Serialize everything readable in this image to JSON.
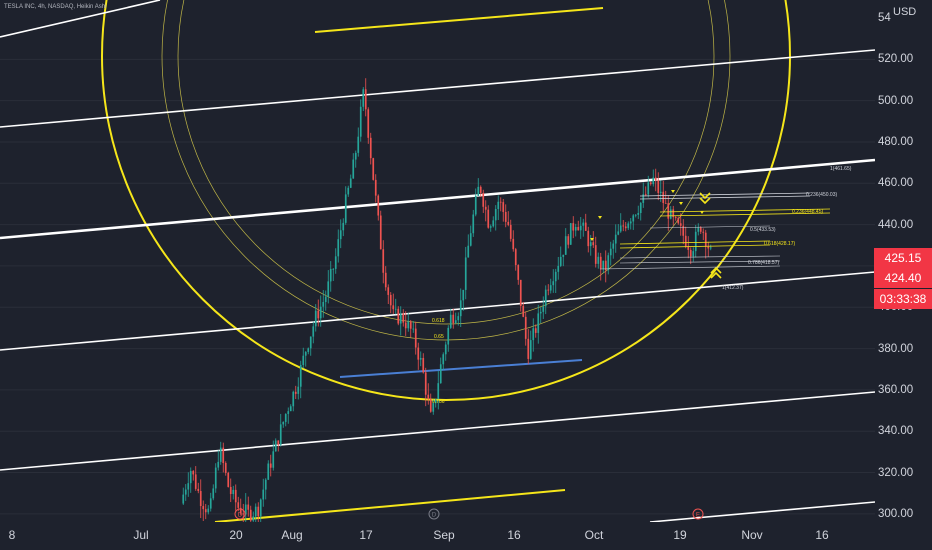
{
  "header": {
    "symbol_text": "TESLA INC, 4h, NASDAQ, Heikin Ashi"
  },
  "axis": {
    "currency": "USD",
    "top_partial": "54",
    "y_ticks": [
      "520.00",
      "500.00",
      "480.00",
      "460.00",
      "440.00",
      "420.00",
      "400.00",
      "380.00",
      "360.00",
      "340.00",
      "320.00",
      "300.00"
    ],
    "x_ticks": [
      "8",
      "Jul",
      "20",
      "Aug",
      "17",
      "Sep",
      "16",
      "Oct",
      "19",
      "Nov",
      "16"
    ]
  },
  "price_badges": {
    "current_price": "425.15",
    "secondary_price": "424.40",
    "countdown": "03:33:38"
  },
  "colors": {
    "background": "#1e222d",
    "bull": "#26a69a",
    "bear": "#ef5350",
    "trendline": "#ffffff",
    "yellow": "#f5e61a",
    "blue_line": "#4a7fd4",
    "badge_red": "#f23645"
  },
  "chart_data": {
    "type": "candlestick",
    "symbol": "TSLA",
    "ylim": [
      296,
      548
    ],
    "y_ticks": [
      300,
      320,
      340,
      360,
      380,
      400,
      420,
      440,
      460,
      480,
      500,
      520
    ],
    "x_tick_labels": [
      "8",
      "Jul",
      "20",
      "Aug",
      "17",
      "Sep",
      "16",
      "Oct",
      "19",
      "Nov",
      "16"
    ],
    "price_path": [
      {
        "t": "Jul 10",
        "p": 305
      },
      {
        "t": "Jul 14",
        "p": 322
      },
      {
        "t": "Jul 17",
        "p": 308
      },
      {
        "t": "Jul 20",
        "p": 300
      },
      {
        "t": "Jul 24",
        "p": 332
      },
      {
        "t": "Jul 28",
        "p": 312
      },
      {
        "t": "Aug 1",
        "p": 303
      },
      {
        "t": "Aug 7",
        "p": 300
      },
      {
        "t": "Aug 12",
        "p": 302
      },
      {
        "t": "Aug 15",
        "p": 320
      },
      {
        "t": "Aug 18",
        "p": 335
      },
      {
        "t": "Aug 21",
        "p": 350
      },
      {
        "t": "Aug 24",
        "p": 362
      },
      {
        "t": "Aug 27",
        "p": 380
      },
      {
        "t": "Aug 29",
        "p": 395
      },
      {
        "t": "Sep 2",
        "p": 405
      },
      {
        "t": "Sep 5",
        "p": 422
      },
      {
        "t": "Sep 8",
        "p": 448
      },
      {
        "t": "Sep 10",
        "p": 470
      },
      {
        "t": "Sep 11",
        "p": 505
      },
      {
        "t": "Sep 13",
        "p": 462
      },
      {
        "t": "Sep 15",
        "p": 420
      },
      {
        "t": "Sep 17",
        "p": 396
      },
      {
        "t": "Sep 19",
        "p": 395
      },
      {
        "t": "Sep 21",
        "p": 388
      },
      {
        "t": "Sep 23",
        "p": 372
      },
      {
        "t": "Sep 24",
        "p": 345
      },
      {
        "t": "Sep 26",
        "p": 372
      },
      {
        "t": "Sep 28",
        "p": 395
      },
      {
        "t": "Sep 30",
        "p": 400
      },
      {
        "t": "Oct 2",
        "p": 435
      },
      {
        "t": "Oct 4",
        "p": 460
      },
      {
        "t": "Oct 6",
        "p": 440
      },
      {
        "t": "Oct 8",
        "p": 452
      },
      {
        "t": "Oct 10",
        "p": 440
      },
      {
        "t": "Oct 12",
        "p": 412
      },
      {
        "t": "Oct 14",
        "p": 378
      },
      {
        "t": "Oct 16",
        "p": 392
      },
      {
        "t": "Oct 18",
        "p": 410
      },
      {
        "t": "Oct 20",
        "p": 420
      },
      {
        "t": "Oct 22",
        "p": 432
      },
      {
        "t": "Oct 24",
        "p": 442
      },
      {
        "t": "Oct 26",
        "p": 436
      },
      {
        "t": "Oct 28",
        "p": 424
      },
      {
        "t": "Oct 30",
        "p": 418
      },
      {
        "t": "Nov 1",
        "p": 432
      },
      {
        "t": "Nov 3",
        "p": 440
      },
      {
        "t": "Nov 5",
        "p": 446
      },
      {
        "t": "Nov 7",
        "p": 452
      },
      {
        "t": "Nov 9",
        "p": 462
      },
      {
        "t": "Nov 11",
        "p": 452
      },
      {
        "t": "Nov 13",
        "p": 442
      },
      {
        "t": "Nov 15",
        "p": 436
      },
      {
        "t": "Nov 17",
        "p": 428
      },
      {
        "t": "Nov 19",
        "p": 440
      },
      {
        "t": "Nov 21",
        "p": 426
      }
    ],
    "annotations": {
      "fib_labels": [
        "0.618",
        "0.65",
        "0.786",
        "0.5(433.53)",
        "0.618(428.17)",
        "0.786(418.57)",
        "1(461.65)",
        "1(412.37)",
        "0.236(450.03)",
        "0.236(448.45)"
      ],
      "event_markers": [
        "D",
        "D",
        "E"
      ]
    }
  }
}
